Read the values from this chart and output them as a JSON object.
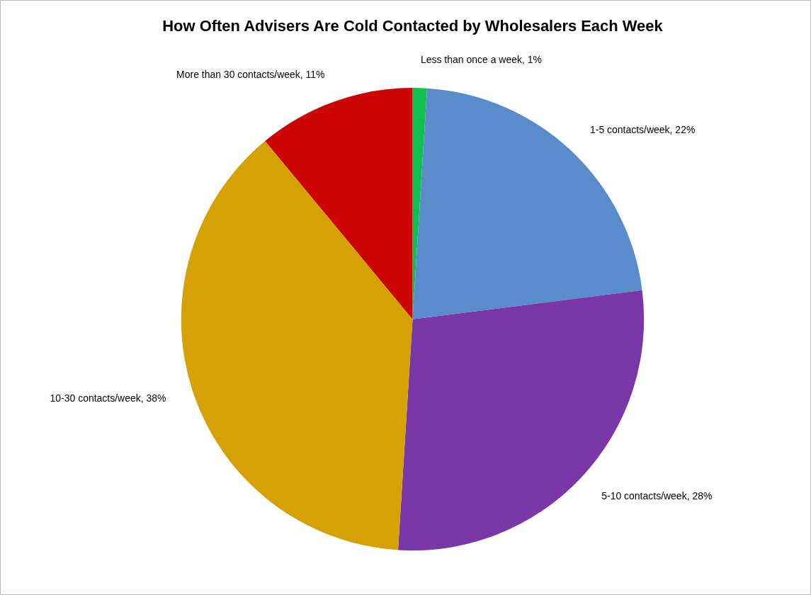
{
  "chart_data": {
    "type": "pie",
    "title": "How Often Advisers Are Cold Contacted by Wholesalers Each Week",
    "categories": [
      "Less than once a week",
      "1-5 contacts/week",
      "5-10 contacts/week",
      "10-30 contacts/week",
      "More than 30 contacts/week"
    ],
    "values": [
      1,
      22,
      28,
      38,
      11
    ],
    "value_labels": [
      "1%",
      "22%",
      "28%",
      "38%",
      "11%"
    ],
    "colors": [
      "#0fbf4f",
      "#5a8bca",
      "#7a37a8",
      "#d6a104",
      "#cc0404"
    ],
    "legend": false
  }
}
